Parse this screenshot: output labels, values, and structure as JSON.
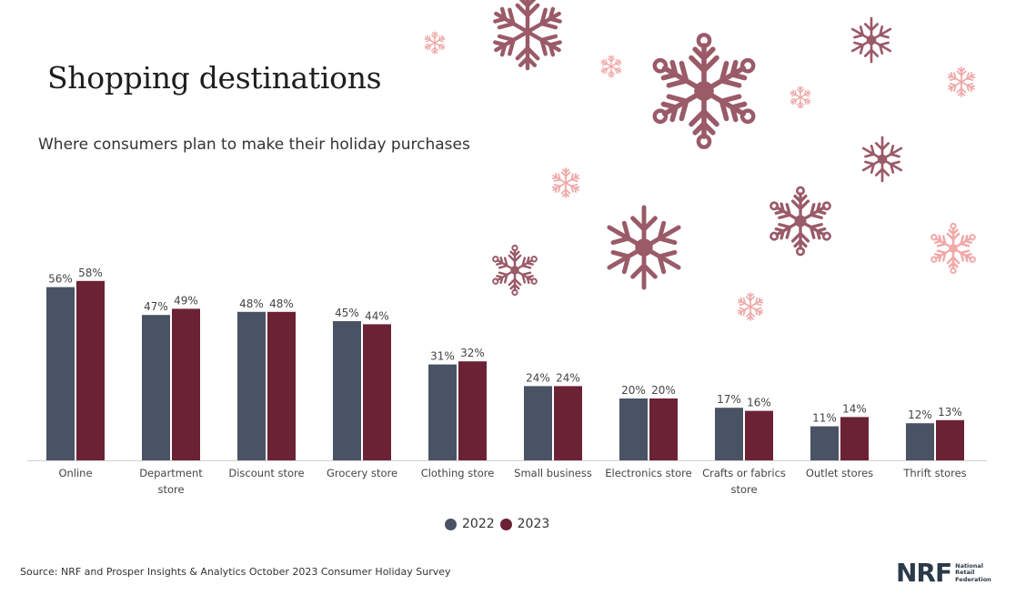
{
  "title": "Shopping destinations",
  "subtitle": "Where consumers plan to make their holiday purchases",
  "source": "Source: NRF and Prosper Insights & Analytics October 2023 Consumer Holiday Survey",
  "logo": {
    "mark": "NRF",
    "line1": "National",
    "line2": "Retail",
    "line3": "Federation"
  },
  "colors": {
    "series_2022": "#4a5364",
    "series_2023": "#6b2234",
    "flake_dark": "#9a5a68",
    "flake_light": "#f0a8a8"
  },
  "chart_data": {
    "type": "bar",
    "title": "Shopping destinations",
    "subtitle": "Where consumers plan to make their holiday purchases",
    "categories": [
      [
        "Online"
      ],
      [
        "Department",
        "store"
      ],
      [
        "Discount store"
      ],
      [
        "Grocery store"
      ],
      [
        "Clothing store"
      ],
      [
        "Small business"
      ],
      [
        "Electronics store"
      ],
      [
        "Crafts or fabrics",
        "store"
      ],
      [
        "Outlet stores"
      ],
      [
        "Thrift stores"
      ]
    ],
    "series": [
      {
        "name": "2022",
        "values": [
          56,
          47,
          48,
          45,
          31,
          24,
          20,
          17,
          11,
          12
        ],
        "labels": [
          "56%",
          "47%",
          "48%",
          "45%",
          "31%",
          "24%",
          "20%",
          "17%",
          "11%",
          "12%"
        ]
      },
      {
        "name": "2023",
        "values": [
          58,
          49,
          48,
          44,
          32,
          24,
          20,
          16,
          14,
          13
        ],
        "labels": [
          "58%",
          "49%",
          "48%",
          "44%",
          "32%",
          "24%",
          "20%",
          "16%",
          "14%",
          "13%"
        ]
      }
    ],
    "unit": "%",
    "ylim": [
      0,
      100
    ],
    "legend_position": "bottom-center",
    "grid": false
  }
}
